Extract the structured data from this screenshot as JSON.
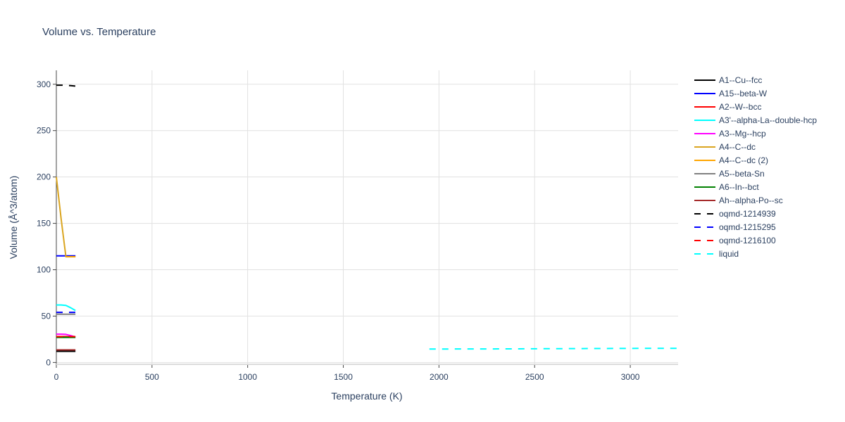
{
  "chart_data": {
    "type": "line",
    "title": "Volume vs. Temperature",
    "xlabel": "Temperature (K)",
    "ylabel": "Volume (Å^3/atom)",
    "xlim": [
      0,
      3250
    ],
    "ylim": [
      -2,
      315
    ],
    "x_ticks": [
      0,
      500,
      1000,
      1500,
      2000,
      2500,
      3000
    ],
    "y_ticks": [
      0,
      50,
      100,
      150,
      200,
      250,
      300
    ],
    "grid": true,
    "legend_position": "right",
    "series": [
      {
        "name": "A1--Cu--fcc",
        "color": "#000000",
        "dash": "solid",
        "x": [
          0,
          25,
          50,
          75,
          100
        ],
        "y": [
          12.0,
          12.0,
          12.0,
          12.0,
          12.0
        ]
      },
      {
        "name": "A15--beta-W",
        "color": "#0000ff",
        "dash": "solid",
        "x": [
          0,
          25,
          50,
          75,
          100
        ],
        "y": [
          115.0,
          115.0,
          115.0,
          115.0,
          115.0
        ]
      },
      {
        "name": "A2--W--bcc",
        "color": "#ff0000",
        "dash": "solid",
        "x": [
          0,
          25,
          50,
          75,
          100
        ],
        "y": [
          28.0,
          28.0,
          28.0,
          27.8,
          27.5
        ]
      },
      {
        "name": "A3'--alpha-La--double-hcp",
        "color": "#00ffff",
        "dash": "solid",
        "x": [
          0,
          25,
          50,
          75,
          100
        ],
        "y": [
          62.0,
          62.0,
          61.5,
          59.0,
          56.0
        ]
      },
      {
        "name": "A3--Mg--hcp",
        "color": "#ff00ff",
        "dash": "solid",
        "x": [
          0,
          25,
          50,
          75,
          100
        ],
        "y": [
          30.5,
          30.5,
          30.3,
          29.0,
          27.5
        ]
      },
      {
        "name": "A4--C--dc",
        "color": "#daa520",
        "dash": "solid",
        "x": [
          0,
          25,
          50,
          75,
          100
        ],
        "y": [
          200.0,
          155.0,
          114.0,
          114.0,
          114.0
        ]
      },
      {
        "name": "A4--C--dc (2)",
        "color": "#ffa500",
        "dash": "solid",
        "x": [
          50,
          75,
          100
        ],
        "y": [
          114.0,
          114.0,
          114.0
        ]
      },
      {
        "name": "A5--beta-Sn",
        "color": "#808080",
        "dash": "solid",
        "x": [
          0,
          25,
          50,
          75,
          100
        ],
        "y": [
          52.0,
          52.0,
          52.0,
          52.0,
          52.0
        ]
      },
      {
        "name": "A6--In--bct",
        "color": "#008000",
        "dash": "solid",
        "x": [
          0,
          25,
          50,
          75,
          100
        ],
        "y": [
          27.0,
          27.0,
          27.0,
          27.0,
          27.0
        ]
      },
      {
        "name": "Ah--alpha-Po--sc",
        "color": "#a52a2a",
        "dash": "solid",
        "x": [
          0,
          25,
          50,
          75,
          100
        ],
        "y": [
          13.5,
          13.5,
          13.5,
          13.5,
          13.5
        ]
      },
      {
        "name": "oqmd-1214939",
        "color": "#000000",
        "dash": "dash",
        "x": [
          0,
          25,
          50,
          75,
          100
        ],
        "y": [
          299.0,
          299.0,
          298.8,
          298.5,
          298.0
        ]
      },
      {
        "name": "oqmd-1215295",
        "color": "#0000ff",
        "dash": "dash",
        "x": [
          0,
          25,
          50,
          75,
          100
        ],
        "y": [
          54.0,
          54.0,
          54.0,
          54.0,
          54.0
        ]
      },
      {
        "name": "oqmd-1216100",
        "color": "#ff0000",
        "dash": "dash",
        "x": [
          0,
          25,
          50,
          75,
          100
        ],
        "y": [
          28.0,
          28.0,
          28.0,
          28.0,
          28.0
        ]
      },
      {
        "name": "liquid",
        "color": "#00ffff",
        "dash": "dash",
        "x": [
          1950,
          2250,
          2500,
          2750,
          3000,
          3250
        ],
        "y": [
          14.5,
          14.6,
          14.8,
          15.0,
          15.2,
          15.3
        ]
      }
    ]
  }
}
